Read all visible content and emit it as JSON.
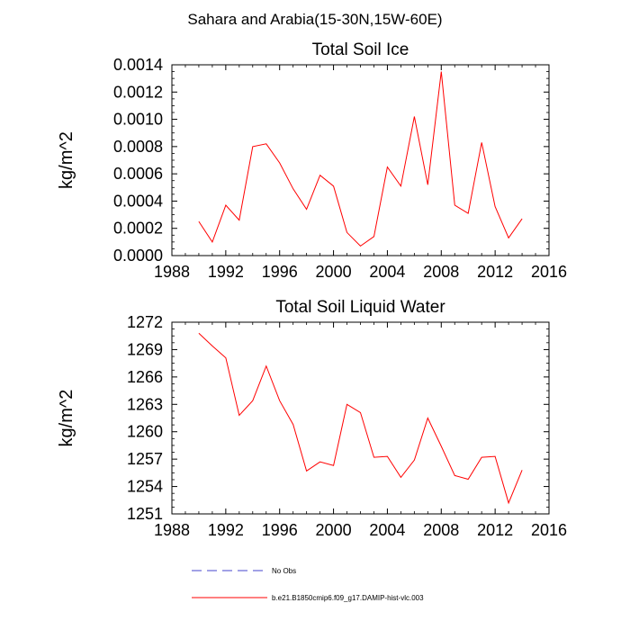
{
  "figure_title": "Sahara and Arabia(15-30N,15W-60E)",
  "legend": {
    "items": [
      {
        "label": "No Obs",
        "color": "#4444cc",
        "style": "dashed"
      },
      {
        "label": "b.e21.B1850cmip6.f09_g17.DAMIP-hist-vlc.003",
        "color": "#ff0000",
        "style": "solid"
      }
    ]
  },
  "chart_data": [
    {
      "type": "line",
      "title": "Total Soil Ice",
      "xlabel": "",
      "ylabel": "kg/m^2",
      "xlim": [
        1988,
        2016
      ],
      "ylim": [
        0.0,
        0.0014
      ],
      "xticks": [
        1988,
        1992,
        1996,
        2000,
        2004,
        2008,
        2012,
        2016
      ],
      "yticks": [
        0.0,
        0.0002,
        0.0004,
        0.0006,
        0.0008,
        0.001,
        0.0012,
        0.0014
      ],
      "xtick_labels": [
        "1988",
        "1992",
        "1996",
        "2000",
        "2004",
        "2008",
        "2012",
        "2016"
      ],
      "ytick_labels": [
        "0.0000",
        "0.0002",
        "0.0004",
        "0.0006",
        "0.0008",
        "0.0010",
        "0.0012",
        "0.0014"
      ],
      "series": [
        {
          "name": "b.e21.B1850cmip6.f09_g17.DAMIP-hist-vlc.003",
          "color": "#ff0000",
          "x": [
            1990,
            1991,
            1992,
            1993,
            1994,
            1995,
            1996,
            1997,
            1998,
            1999,
            2000,
            2001,
            2002,
            2003,
            2004,
            2005,
            2006,
            2007,
            2008,
            2009,
            2010,
            2011,
            2012,
            2013,
            2014
          ],
          "y": [
            0.00025,
            0.0001,
            0.00037,
            0.00026,
            0.0008,
            0.00082,
            0.00068,
            0.00049,
            0.00034,
            0.00059,
            0.00051,
            0.00017,
            7e-05,
            0.00014,
            0.00065,
            0.00051,
            0.00102,
            0.00052,
            0.00135,
            0.00037,
            0.00031,
            0.00083,
            0.00036,
            0.00013,
            0.00027
          ]
        }
      ]
    },
    {
      "type": "line",
      "title": "Total Soil Liquid Water",
      "xlabel": "",
      "ylabel": "kg/m^2",
      "xlim": [
        1988,
        2016
      ],
      "ylim": [
        1251,
        1272
      ],
      "xticks": [
        1988,
        1992,
        1996,
        2000,
        2004,
        2008,
        2012,
        2016
      ],
      "yticks": [
        1251,
        1254,
        1257,
        1260,
        1263,
        1266,
        1269,
        1272
      ],
      "xtick_labels": [
        "1988",
        "1992",
        "1996",
        "2000",
        "2004",
        "2008",
        "2012",
        "2016"
      ],
      "ytick_labels": [
        "1251",
        "1254",
        "1257",
        "1260",
        "1263",
        "1266",
        "1269",
        "1272"
      ],
      "series": [
        {
          "name": "b.e21.B1850cmip6.f09_g17.DAMIP-hist-vlc.003",
          "color": "#ff0000",
          "x": [
            1990,
            1991,
            1992,
            1993,
            1994,
            1995,
            1996,
            1997,
            1998,
            1999,
            2000,
            2001,
            2002,
            2003,
            2004,
            2005,
            2006,
            2007,
            2008,
            2009,
            2010,
            2011,
            2012,
            2013,
            2014
          ],
          "y": [
            1270.8,
            1269.4,
            1268.1,
            1261.8,
            1263.4,
            1267.2,
            1263.4,
            1260.8,
            1255.7,
            1256.7,
            1256.3,
            1263.0,
            1262.1,
            1257.2,
            1257.3,
            1255.0,
            1256.9,
            1261.5,
            1258.4,
            1255.2,
            1254.8,
            1257.2,
            1257.3,
            1252.2,
            1255.8
          ]
        }
      ]
    }
  ]
}
